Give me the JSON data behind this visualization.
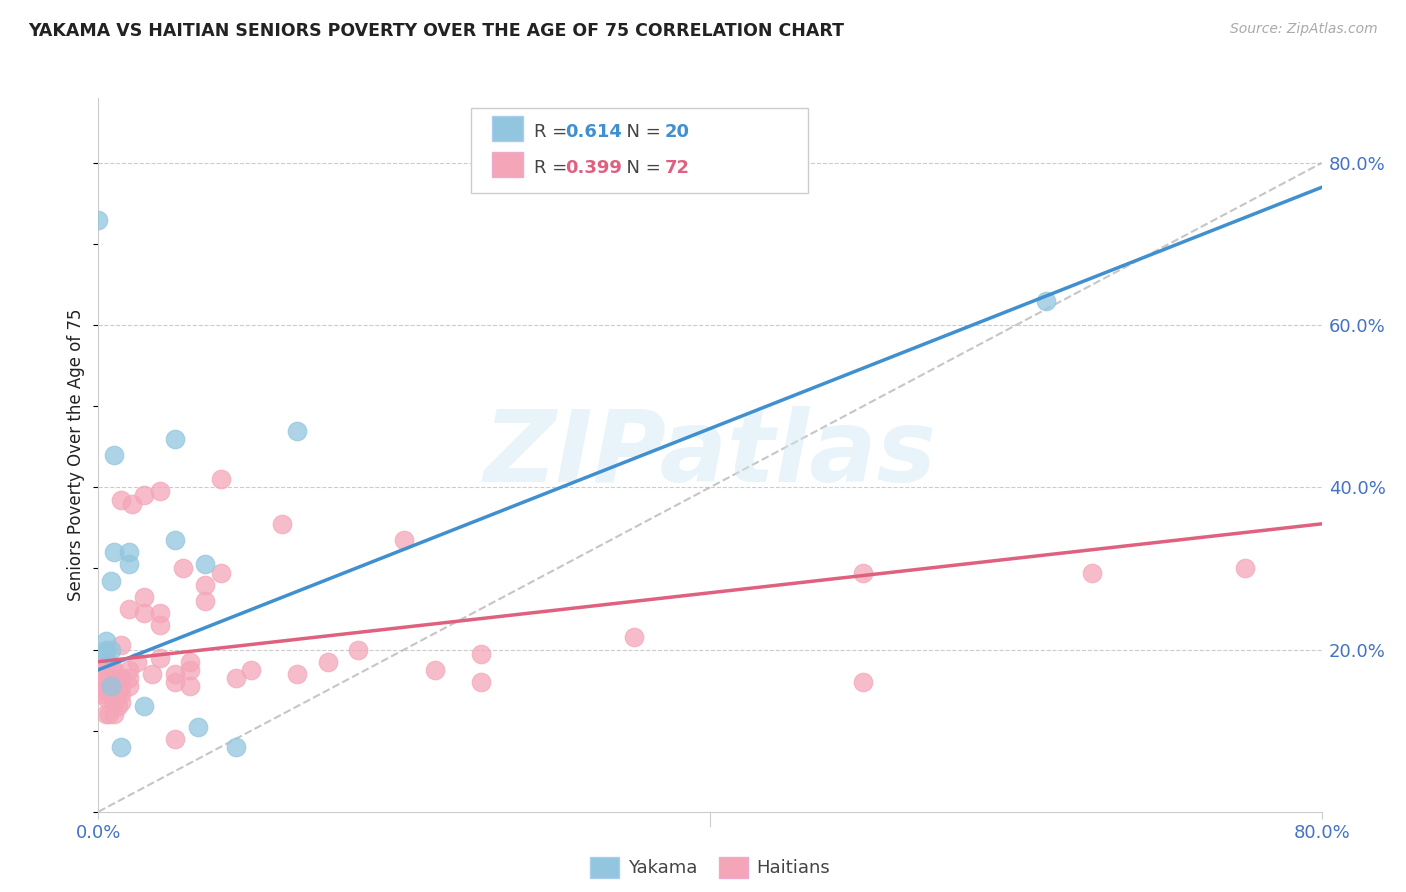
{
  "title": "YAKAMA VS HAITIAN SENIORS POVERTY OVER THE AGE OF 75 CORRELATION CHART",
  "source": "Source: ZipAtlas.com",
  "ylabel": "Seniors Poverty Over the Age of 75",
  "yakama_R": "0.614",
  "yakama_N": "20",
  "haitian_R": "0.399",
  "haitian_N": "72",
  "yakama_color": "#92c5de",
  "haitian_color": "#f4a6b8",
  "yakama_line_color": "#4090d0",
  "haitian_line_color": "#e06080",
  "diagonal_color": "#b8b8b8",
  "background_color": "#ffffff",
  "grid_color": "#cccccc",
  "title_color": "#222222",
  "source_color": "#aaaaaa",
  "axis_label_color": "#4472c4",
  "xlim": [
    0.0,
    0.8
  ],
  "ylim": [
    0.0,
    0.88
  ],
  "yakama_line_x0": 0.0,
  "yakama_line_y0": 0.175,
  "yakama_line_x1": 0.8,
  "yakama_line_y1": 0.77,
  "haitian_line_x0": 0.0,
  "haitian_line_y0": 0.185,
  "haitian_line_x1": 0.8,
  "haitian_line_y1": 0.355,
  "yakama_x": [
    0.0,
    0.005,
    0.005,
    0.005,
    0.008,
    0.008,
    0.008,
    0.01,
    0.01,
    0.015,
    0.02,
    0.02,
    0.03,
    0.05,
    0.05,
    0.065,
    0.07,
    0.09,
    0.13,
    0.62
  ],
  "yakama_y": [
    0.73,
    0.195,
    0.2,
    0.21,
    0.2,
    0.155,
    0.285,
    0.32,
    0.44,
    0.08,
    0.32,
    0.305,
    0.13,
    0.335,
    0.46,
    0.105,
    0.305,
    0.08,
    0.47,
    0.63
  ],
  "haitian_x": [
    0.003,
    0.003,
    0.003,
    0.004,
    0.005,
    0.005,
    0.005,
    0.005,
    0.005,
    0.007,
    0.007,
    0.008,
    0.008,
    0.008,
    0.009,
    0.01,
    0.01,
    0.01,
    0.01,
    0.01,
    0.012,
    0.012,
    0.012,
    0.013,
    0.013,
    0.014,
    0.015,
    0.015,
    0.015,
    0.015,
    0.015,
    0.015,
    0.02,
    0.02,
    0.02,
    0.02,
    0.022,
    0.025,
    0.03,
    0.03,
    0.03,
    0.035,
    0.04,
    0.04,
    0.04,
    0.04,
    0.05,
    0.05,
    0.05,
    0.055,
    0.06,
    0.06,
    0.06,
    0.07,
    0.07,
    0.08,
    0.08,
    0.09,
    0.1,
    0.12,
    0.13,
    0.15,
    0.17,
    0.2,
    0.22,
    0.25,
    0.25,
    0.35,
    0.5,
    0.5,
    0.65,
    0.75
  ],
  "haitian_y": [
    0.145,
    0.16,
    0.175,
    0.18,
    0.12,
    0.14,
    0.15,
    0.16,
    0.185,
    0.12,
    0.155,
    0.145,
    0.155,
    0.165,
    0.175,
    0.12,
    0.135,
    0.15,
    0.16,
    0.175,
    0.145,
    0.155,
    0.16,
    0.13,
    0.15,
    0.155,
    0.135,
    0.145,
    0.155,
    0.165,
    0.205,
    0.385,
    0.155,
    0.165,
    0.175,
    0.25,
    0.38,
    0.185,
    0.245,
    0.265,
    0.39,
    0.17,
    0.19,
    0.23,
    0.245,
    0.395,
    0.09,
    0.16,
    0.17,
    0.3,
    0.155,
    0.175,
    0.185,
    0.26,
    0.28,
    0.295,
    0.41,
    0.165,
    0.175,
    0.355,
    0.17,
    0.185,
    0.2,
    0.335,
    0.175,
    0.195,
    0.16,
    0.215,
    0.16,
    0.295,
    0.295,
    0.3
  ]
}
